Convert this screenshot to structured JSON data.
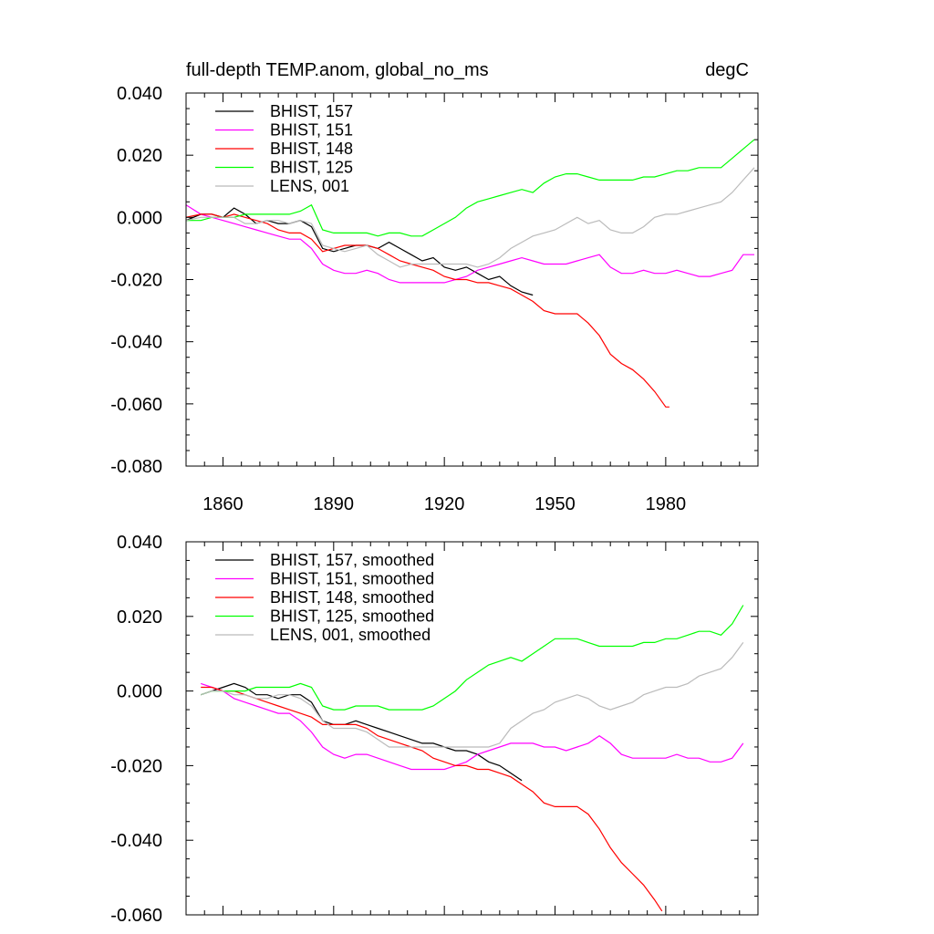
{
  "chart_data": [
    {
      "type": "line",
      "title": "full-depth TEMP.anom, global_no_ms",
      "units": "degC",
      "xlabel": "",
      "ylabel": "",
      "xlim": [
        1850,
        2005
      ],
      "ylim": [
        -0.08,
        0.04
      ],
      "xticks": [
        1860,
        1890,
        1920,
        1950,
        1980
      ],
      "yticks": [
        -0.08,
        -0.06,
        -0.04,
        -0.02,
        0.0,
        0.02,
        0.04
      ],
      "ytick_labels": [
        "-0.080",
        "-0.060",
        "-0.040",
        "-0.020",
        "0.000",
        "0.020",
        "0.040"
      ],
      "legend_position": "top-left",
      "series": [
        {
          "name": "BHIST, 157",
          "color": "#000000",
          "x": [
            1850,
            1854,
            1857,
            1860,
            1863,
            1866,
            1869,
            1872,
            1875,
            1878,
            1881,
            1884,
            1887,
            1890,
            1893,
            1896,
            1899,
            1902,
            1905,
            1908,
            1911,
            1914,
            1917,
            1920,
            1923,
            1926,
            1929,
            1932,
            1935,
            1938,
            1941,
            1944
          ],
          "y": [
            -0.001,
            0.001,
            0.001,
            0.0,
            0.003,
            0.001,
            -0.002,
            -0.001,
            -0.002,
            -0.002,
            -0.001,
            -0.003,
            -0.01,
            -0.011,
            -0.01,
            -0.009,
            -0.009,
            -0.01,
            -0.008,
            -0.01,
            -0.012,
            -0.014,
            -0.013,
            -0.016,
            -0.017,
            -0.016,
            -0.018,
            -0.02,
            -0.019,
            -0.022,
            -0.024,
            -0.025
          ]
        },
        {
          "name": "BHIST, 151",
          "color": "#ff00ff",
          "x": [
            1850,
            1854,
            1857,
            1860,
            1863,
            1866,
            1869,
            1872,
            1875,
            1878,
            1881,
            1884,
            1887,
            1890,
            1893,
            1896,
            1899,
            1902,
            1905,
            1908,
            1911,
            1914,
            1917,
            1920,
            1923,
            1926,
            1929,
            1932,
            1935,
            1938,
            1941,
            1944,
            1947,
            1950,
            1953,
            1956,
            1959,
            1962,
            1965,
            1968,
            1971,
            1974,
            1977,
            1980,
            1983,
            1986,
            1989,
            1992,
            1995,
            1998,
            2001,
            2004
          ],
          "y": [
            0.004,
            0.001,
            0.0,
            -0.001,
            -0.002,
            -0.003,
            -0.004,
            -0.005,
            -0.006,
            -0.007,
            -0.007,
            -0.01,
            -0.015,
            -0.017,
            -0.018,
            -0.018,
            -0.017,
            -0.018,
            -0.02,
            -0.021,
            -0.021,
            -0.021,
            -0.021,
            -0.021,
            -0.02,
            -0.019,
            -0.017,
            -0.016,
            -0.015,
            -0.014,
            -0.013,
            -0.014,
            -0.015,
            -0.015,
            -0.015,
            -0.014,
            -0.013,
            -0.012,
            -0.016,
            -0.018,
            -0.018,
            -0.017,
            -0.018,
            -0.018,
            -0.017,
            -0.018,
            -0.019,
            -0.019,
            -0.018,
            -0.017,
            -0.012,
            -0.012
          ]
        },
        {
          "name": "BHIST, 148",
          "color": "#ff0000",
          "x": [
            1850,
            1854,
            1857,
            1860,
            1863,
            1866,
            1869,
            1872,
            1875,
            1878,
            1881,
            1884,
            1887,
            1890,
            1893,
            1896,
            1899,
            1902,
            1905,
            1908,
            1911,
            1914,
            1917,
            1920,
            1923,
            1926,
            1929,
            1932,
            1935,
            1938,
            1941,
            1944,
            1947,
            1950,
            1953,
            1956,
            1959,
            1962,
            1965,
            1968,
            1971,
            1974,
            1977,
            1980,
            1981
          ],
          "y": [
            0.0,
            0.001,
            0.001,
            0.0,
            0.001,
            0.0,
            -0.001,
            -0.002,
            -0.004,
            -0.005,
            -0.005,
            -0.007,
            -0.011,
            -0.01,
            -0.009,
            -0.009,
            -0.009,
            -0.01,
            -0.012,
            -0.014,
            -0.015,
            -0.016,
            -0.017,
            -0.019,
            -0.02,
            -0.02,
            -0.021,
            -0.021,
            -0.022,
            -0.023,
            -0.025,
            -0.027,
            -0.03,
            -0.031,
            -0.031,
            -0.031,
            -0.034,
            -0.038,
            -0.044,
            -0.047,
            -0.049,
            -0.052,
            -0.056,
            -0.061,
            -0.061
          ]
        },
        {
          "name": "BHIST, 125",
          "color": "#00ff00",
          "x": [
            1850,
            1854,
            1857,
            1860,
            1863,
            1866,
            1869,
            1872,
            1875,
            1878,
            1881,
            1884,
            1887,
            1890,
            1893,
            1896,
            1899,
            1902,
            1905,
            1908,
            1911,
            1914,
            1917,
            1920,
            1923,
            1926,
            1929,
            1932,
            1935,
            1938,
            1941,
            1944,
            1947,
            1950,
            1953,
            1956,
            1959,
            1962,
            1965,
            1968,
            1971,
            1974,
            1977,
            1980,
            1983,
            1986,
            1989,
            1992,
            1995,
            1998,
            2001,
            2004
          ],
          "y": [
            -0.001,
            -0.001,
            0.0,
            0.0,
            0.0,
            0.001,
            0.001,
            0.001,
            0.001,
            0.001,
            0.002,
            0.004,
            -0.004,
            -0.005,
            -0.005,
            -0.005,
            -0.005,
            -0.006,
            -0.005,
            -0.005,
            -0.006,
            -0.006,
            -0.004,
            -0.002,
            0.0,
            0.003,
            0.005,
            0.006,
            0.007,
            0.008,
            0.009,
            0.008,
            0.011,
            0.013,
            0.014,
            0.014,
            0.013,
            0.012,
            0.012,
            0.012,
            0.012,
            0.013,
            0.013,
            0.014,
            0.015,
            0.015,
            0.016,
            0.016,
            0.016,
            0.019,
            0.022,
            0.025
          ]
        },
        {
          "name": "LENS, 001",
          "color": "#bbbbbb",
          "x": [
            1850,
            1854,
            1857,
            1860,
            1863,
            1866,
            1869,
            1872,
            1875,
            1878,
            1881,
            1884,
            1887,
            1890,
            1893,
            1896,
            1899,
            1902,
            1905,
            1908,
            1911,
            1914,
            1917,
            1920,
            1923,
            1926,
            1929,
            1932,
            1935,
            1938,
            1941,
            1944,
            1947,
            1950,
            1953,
            1956,
            1959,
            1962,
            1965,
            1968,
            1971,
            1974,
            1977,
            1980,
            1983,
            1986,
            1989,
            1992,
            1995,
            1998,
            2001,
            2004
          ],
          "y": [
            -0.001,
            0.0,
            0.0,
            0.0,
            0.0,
            -0.002,
            -0.002,
            -0.001,
            -0.001,
            -0.002,
            -0.001,
            -0.002,
            -0.009,
            -0.01,
            -0.011,
            -0.01,
            -0.009,
            -0.012,
            -0.014,
            -0.016,
            -0.015,
            -0.015,
            -0.015,
            -0.015,
            -0.015,
            -0.015,
            -0.016,
            -0.015,
            -0.013,
            -0.01,
            -0.008,
            -0.006,
            -0.005,
            -0.004,
            -0.002,
            0.0,
            -0.002,
            -0.001,
            -0.004,
            -0.005,
            -0.005,
            -0.003,
            0.0,
            0.001,
            0.001,
            0.002,
            0.003,
            0.004,
            0.005,
            0.008,
            0.012,
            0.016
          ]
        }
      ]
    },
    {
      "type": "line",
      "title": "",
      "xlabel": "",
      "ylabel": "",
      "xlim": [
        1850,
        2005
      ],
      "ylim": [
        -0.06,
        0.04
      ],
      "yticks": [
        -0.06,
        -0.04,
        -0.02,
        0.0,
        0.02,
        0.04
      ],
      "ytick_labels": [
        "-0.060",
        "-0.040",
        "-0.020",
        "0.000",
        "0.020",
        "0.040"
      ],
      "legend_position": "top-left",
      "series": [
        {
          "name": "BHIST, 157, smoothed",
          "color": "#000000",
          "x": [
            1854,
            1857,
            1860,
            1863,
            1866,
            1869,
            1872,
            1875,
            1878,
            1881,
            1884,
            1887,
            1890,
            1893,
            1896,
            1899,
            1902,
            1905,
            1908,
            1911,
            1914,
            1917,
            1920,
            1923,
            1926,
            1929,
            1932,
            1935,
            1938,
            1941
          ],
          "y": [
            -0.001,
            0.0,
            0.001,
            0.002,
            0.001,
            -0.001,
            -0.001,
            -0.002,
            -0.001,
            -0.001,
            -0.003,
            -0.008,
            -0.009,
            -0.009,
            -0.008,
            -0.009,
            -0.01,
            -0.011,
            -0.012,
            -0.013,
            -0.014,
            -0.014,
            -0.015,
            -0.016,
            -0.016,
            -0.017,
            -0.019,
            -0.02,
            -0.022,
            -0.024
          ]
        },
        {
          "name": "BHIST, 151, smoothed",
          "color": "#ff00ff",
          "x": [
            1854,
            1857,
            1860,
            1863,
            1866,
            1869,
            1872,
            1875,
            1878,
            1881,
            1884,
            1887,
            1890,
            1893,
            1896,
            1899,
            1902,
            1905,
            1908,
            1911,
            1914,
            1917,
            1920,
            1923,
            1926,
            1929,
            1932,
            1935,
            1938,
            1941,
            1944,
            1947,
            1950,
            1953,
            1956,
            1959,
            1962,
            1965,
            1968,
            1971,
            1974,
            1977,
            1980,
            1983,
            1986,
            1989,
            1992,
            1995,
            1998,
            2001
          ],
          "y": [
            0.002,
            0.001,
            0.0,
            -0.002,
            -0.003,
            -0.004,
            -0.005,
            -0.006,
            -0.006,
            -0.008,
            -0.011,
            -0.015,
            -0.017,
            -0.018,
            -0.017,
            -0.017,
            -0.018,
            -0.019,
            -0.02,
            -0.021,
            -0.021,
            -0.021,
            -0.021,
            -0.02,
            -0.019,
            -0.017,
            -0.016,
            -0.015,
            -0.014,
            -0.014,
            -0.014,
            -0.015,
            -0.015,
            -0.016,
            -0.015,
            -0.014,
            -0.012,
            -0.014,
            -0.017,
            -0.018,
            -0.018,
            -0.018,
            -0.018,
            -0.017,
            -0.018,
            -0.018,
            -0.019,
            -0.019,
            -0.018,
            -0.014
          ]
        },
        {
          "name": "BHIST, 148, smoothed",
          "color": "#ff0000",
          "x": [
            1854,
            1857,
            1860,
            1863,
            1866,
            1869,
            1872,
            1875,
            1878,
            1881,
            1884,
            1887,
            1890,
            1893,
            1896,
            1899,
            1902,
            1905,
            1908,
            1911,
            1914,
            1917,
            1920,
            1923,
            1926,
            1929,
            1932,
            1935,
            1938,
            1941,
            1944,
            1947,
            1950,
            1953,
            1956,
            1959,
            1962,
            1965,
            1968,
            1971,
            1974,
            1977,
            1979
          ],
          "y": [
            0.001,
            0.001,
            0.0,
            0.0,
            -0.001,
            -0.002,
            -0.003,
            -0.004,
            -0.005,
            -0.006,
            -0.007,
            -0.009,
            -0.009,
            -0.009,
            -0.009,
            -0.01,
            -0.012,
            -0.013,
            -0.014,
            -0.015,
            -0.016,
            -0.018,
            -0.019,
            -0.02,
            -0.02,
            -0.021,
            -0.021,
            -0.022,
            -0.023,
            -0.025,
            -0.027,
            -0.03,
            -0.031,
            -0.031,
            -0.031,
            -0.033,
            -0.037,
            -0.042,
            -0.046,
            -0.049,
            -0.052,
            -0.056,
            -0.059
          ]
        },
        {
          "name": "BHIST, 125, smoothed",
          "color": "#00ff00",
          "x": [
            1854,
            1857,
            1860,
            1863,
            1866,
            1869,
            1872,
            1875,
            1878,
            1881,
            1884,
            1887,
            1890,
            1893,
            1896,
            1899,
            1902,
            1905,
            1908,
            1911,
            1914,
            1917,
            1920,
            1923,
            1926,
            1929,
            1932,
            1935,
            1938,
            1941,
            1944,
            1947,
            1950,
            1953,
            1956,
            1959,
            1962,
            1965,
            1968,
            1971,
            1974,
            1977,
            1980,
            1983,
            1986,
            1989,
            1992,
            1995,
            1998,
            2001
          ],
          "y": [
            -0.001,
            0.0,
            0.0,
            0.0,
            0.0,
            0.001,
            0.001,
            0.001,
            0.001,
            0.002,
            0.001,
            -0.004,
            -0.005,
            -0.005,
            -0.004,
            -0.004,
            -0.004,
            -0.005,
            -0.005,
            -0.005,
            -0.005,
            -0.004,
            -0.002,
            0.0,
            0.003,
            0.005,
            0.007,
            0.008,
            0.009,
            0.008,
            0.01,
            0.012,
            0.014,
            0.014,
            0.014,
            0.013,
            0.012,
            0.012,
            0.012,
            0.012,
            0.013,
            0.013,
            0.014,
            0.014,
            0.015,
            0.016,
            0.016,
            0.015,
            0.018,
            0.023
          ]
        },
        {
          "name": "LENS, 001, smoothed",
          "color": "#bbbbbb",
          "x": [
            1854,
            1857,
            1860,
            1863,
            1866,
            1869,
            1872,
            1875,
            1878,
            1881,
            1884,
            1887,
            1890,
            1893,
            1896,
            1899,
            1902,
            1905,
            1908,
            1911,
            1914,
            1917,
            1920,
            1923,
            1926,
            1929,
            1932,
            1935,
            1938,
            1941,
            1944,
            1947,
            1950,
            1953,
            1956,
            1959,
            1962,
            1965,
            1968,
            1971,
            1974,
            1977,
            1980,
            1983,
            1986,
            1989,
            1992,
            1995,
            1998,
            2001
          ],
          "y": [
            -0.001,
            0.0,
            0.0,
            -0.001,
            -0.001,
            -0.002,
            -0.002,
            -0.001,
            -0.001,
            -0.002,
            -0.004,
            -0.008,
            -0.01,
            -0.01,
            -0.01,
            -0.011,
            -0.013,
            -0.015,
            -0.015,
            -0.015,
            -0.015,
            -0.015,
            -0.015,
            -0.015,
            -0.015,
            -0.015,
            -0.015,
            -0.014,
            -0.01,
            -0.008,
            -0.006,
            -0.005,
            -0.003,
            -0.002,
            -0.001,
            -0.002,
            -0.004,
            -0.005,
            -0.004,
            -0.003,
            -0.001,
            0.0,
            0.001,
            0.001,
            0.002,
            0.004,
            0.005,
            0.006,
            0.009,
            0.013
          ]
        }
      ]
    }
  ]
}
